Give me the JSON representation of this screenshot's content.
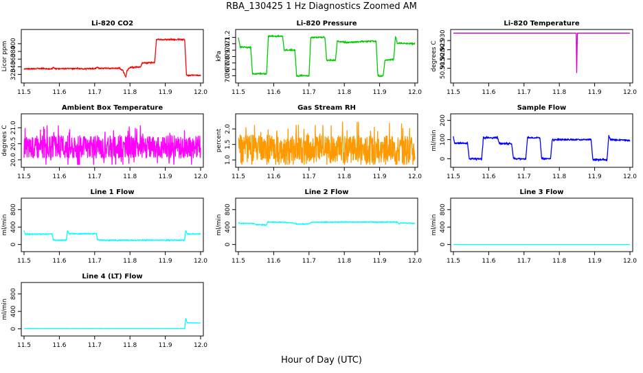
{
  "figure": {
    "title": "RBA_130425  1 Hz Diagnostics Zoomed AM",
    "xlabel": "Hour of Day (UTC)"
  },
  "chart_data": [
    {
      "type": "line",
      "title": "Li-820 CO2",
      "ylabel": "Licor ppm",
      "color": "#ff0000",
      "xlim": [
        11.5,
        12.0
      ],
      "ylim": [
        305,
        430
      ],
      "xticks": [
        "11.5",
        "11.6",
        "11.7",
        "11.8",
        "11.9",
        "12.0"
      ],
      "xtick_values": [
        11.5,
        11.6,
        11.7,
        11.8,
        11.9,
        12.0
      ],
      "yticks": [
        "320",
        "340",
        "360",
        "380",
        "400"
      ],
      "ytick_values": [
        320,
        340,
        360,
        380,
        400
      ],
      "points": [
        [
          11.5,
          335
        ],
        [
          11.58,
          335
        ],
        [
          11.583,
          340
        ],
        [
          11.586,
          335
        ],
        [
          11.7,
          335
        ],
        [
          11.71,
          339
        ],
        [
          11.713,
          336
        ],
        [
          11.77,
          336
        ],
        [
          11.78,
          330
        ],
        [
          11.785,
          320
        ],
        [
          11.788,
          312
        ],
        [
          11.792,
          332
        ],
        [
          11.8,
          338
        ],
        [
          11.82,
          339
        ],
        [
          11.83,
          340
        ],
        [
          11.835,
          350
        ],
        [
          11.87,
          351
        ],
        [
          11.875,
          411
        ],
        [
          11.955,
          411
        ],
        [
          11.96,
          318
        ],
        [
          12.0,
          318
        ]
      ],
      "noise": 1.5
    },
    {
      "type": "line",
      "title": "Li-820 Pressure",
      "ylabel": "kPa",
      "color": "#00cc00",
      "xlim": [
        11.5,
        12.0
      ],
      "ylim": [
        70.53,
        71.28
      ],
      "xticks": [
        "11.5",
        "11.6",
        "11.7",
        "11.8",
        "11.9",
        "12.0"
      ],
      "xtick_values": [
        11.5,
        11.6,
        11.7,
        11.8,
        11.9,
        12.0
      ],
      "yticks": [
        "70.6",
        "70.7",
        "70.8",
        "70.9",
        "71.0",
        "71.1",
        "71.2"
      ],
      "ytick_values": [
        70.6,
        70.7,
        70.8,
        70.9,
        71.0,
        71.1,
        71.2
      ],
      "points": [
        [
          11.5,
          71.2
        ],
        [
          11.505,
          71.05
        ],
        [
          11.535,
          71.04
        ],
        [
          11.54,
          70.63
        ],
        [
          11.58,
          70.63
        ],
        [
          11.585,
          71.22
        ],
        [
          11.625,
          71.22
        ],
        [
          11.63,
          71.0
        ],
        [
          11.66,
          71.0
        ],
        [
          11.665,
          70.6
        ],
        [
          11.7,
          70.6
        ],
        [
          11.705,
          71.2
        ],
        [
          11.745,
          71.2
        ],
        [
          11.75,
          70.84
        ],
        [
          11.775,
          70.84
        ],
        [
          11.78,
          71.14
        ],
        [
          11.81,
          71.12
        ],
        [
          11.84,
          71.13
        ],
        [
          11.87,
          71.14
        ],
        [
          11.89,
          71.14
        ],
        [
          11.895,
          70.6
        ],
        [
          11.91,
          70.6
        ],
        [
          11.915,
          70.84
        ],
        [
          11.94,
          70.86
        ],
        [
          11.945,
          71.22
        ],
        [
          11.95,
          71.11
        ],
        [
          12.0,
          71.1
        ]
      ],
      "noise": 0.01
    },
    {
      "type": "line",
      "title": "Li-820 Temperature",
      "ylabel": "degrees C",
      "color": "#cc00cc",
      "xlim": [
        11.5,
        12.0
      ],
      "ylim": [
        50.9085,
        50.9345
      ],
      "xticks": [
        "11.5",
        "11.6",
        "11.7",
        "11.8",
        "11.9",
        "12.0"
      ],
      "xtick_values": [
        11.5,
        11.6,
        11.7,
        11.8,
        11.9,
        12.0
      ],
      "yticks": [
        "50.915",
        "50.920",
        "50.925",
        "50.930"
      ],
      "ytick_values": [
        50.915,
        50.92,
        50.925,
        50.93
      ],
      "points": [
        [
          11.5,
          50.934
        ],
        [
          11.848,
          50.934
        ],
        [
          11.849,
          50.909
        ],
        [
          11.851,
          50.934
        ],
        [
          12.0,
          50.934
        ]
      ],
      "noise": 0
    },
    {
      "type": "line",
      "title": "Ambient Box Temperature",
      "ylabel": "degrees C",
      "color": "#ff00ff",
      "xlim": [
        11.5,
        12.0
      ],
      "ylim": [
        19.85,
        21.35
      ],
      "xticks": [
        "11.5",
        "11.6",
        "11.7",
        "11.8",
        "11.9",
        "12.0"
      ],
      "xtick_values": [
        11.5,
        11.6,
        11.7,
        11.8,
        11.9,
        12.0
      ],
      "yticks": [
        "20.0",
        "20.5",
        "21.0"
      ],
      "ytick_values": [
        20.0,
        20.5,
        21.0
      ],
      "points": [
        [
          11.5,
          20.4
        ],
        [
          12.0,
          20.4
        ]
      ],
      "noise": 0.35
    },
    {
      "type": "line",
      "title": "Gas Stream RH",
      "ylabel": "percent",
      "color": "#ff9900",
      "xlim": [
        11.5,
        12.0
      ],
      "ylim": [
        0.85,
        2.4
      ],
      "xticks": [
        "11.5",
        "11.6",
        "11.7",
        "11.8",
        "11.9",
        "12.0"
      ],
      "xtick_values": [
        11.5,
        11.6,
        11.7,
        11.8,
        11.9,
        12.0
      ],
      "yticks": [
        "1.0",
        "1.5",
        "2.0"
      ],
      "ytick_values": [
        1.0,
        1.5,
        2.0
      ],
      "points": [
        [
          11.5,
          1.35
        ],
        [
          12.0,
          1.35
        ]
      ],
      "noise": 0.45
    },
    {
      "type": "line",
      "title": "Sample Flow",
      "ylabel": "ml/min",
      "color": "#0000ff",
      "xlim": [
        11.5,
        12.0
      ],
      "ylim": [
        -30,
        220
      ],
      "xticks": [
        "11.5",
        "11.6",
        "11.7",
        "11.8",
        "11.9",
        "12.0"
      ],
      "xtick_values": [
        11.5,
        11.6,
        11.7,
        11.8,
        11.9,
        12.0
      ],
      "yticks": [
        "0",
        "100",
        "200"
      ],
      "ytick_values": [
        0,
        100,
        200
      ],
      "points": [
        [
          11.5,
          115
        ],
        [
          11.503,
          82
        ],
        [
          11.54,
          80
        ],
        [
          11.545,
          0
        ],
        [
          11.58,
          0
        ],
        [
          11.585,
          110
        ],
        [
          11.625,
          110
        ],
        [
          11.63,
          80
        ],
        [
          11.665,
          78
        ],
        [
          11.67,
          0
        ],
        [
          11.705,
          0
        ],
        [
          11.71,
          110
        ],
        [
          11.745,
          110
        ],
        [
          11.75,
          0
        ],
        [
          11.775,
          0
        ],
        [
          11.78,
          100
        ],
        [
          11.89,
          100
        ],
        [
          11.895,
          -5
        ],
        [
          11.935,
          -5
        ],
        [
          11.94,
          118
        ],
        [
          11.945,
          100
        ],
        [
          12.0,
          95
        ]
      ],
      "noise": 4
    },
    {
      "type": "line",
      "title": "Line 1 Flow",
      "ylabel": "ml/min",
      "color": "#00ffff",
      "xlim": [
        11.5,
        12.0
      ],
      "ylim": [
        -100,
        1000
      ],
      "xticks": [
        "11.5",
        "11.6",
        "11.7",
        "11.8",
        "11.9",
        "12.0"
      ],
      "xtick_values": [
        11.5,
        11.6,
        11.7,
        11.8,
        11.9,
        12.0
      ],
      "yticks": [
        "0",
        "400",
        "800"
      ],
      "ytick_values": [
        0,
        400,
        800
      ],
      "points": [
        [
          11.5,
          320
        ],
        [
          11.503,
          240
        ],
        [
          11.58,
          240
        ],
        [
          11.583,
          100
        ],
        [
          11.62,
          100
        ],
        [
          11.623,
          320
        ],
        [
          11.627,
          250
        ],
        [
          11.705,
          250
        ],
        [
          11.708,
          110
        ],
        [
          11.73,
          100
        ],
        [
          11.955,
          100
        ],
        [
          11.958,
          330
        ],
        [
          11.962,
          240
        ],
        [
          12.0,
          240
        ]
      ],
      "noise": 10
    },
    {
      "type": "line",
      "title": "Line 2 Flow",
      "ylabel": "ml/min",
      "color": "#00ffff",
      "xlim": [
        11.5,
        12.0
      ],
      "ylim": [
        -100,
        1000
      ],
      "xticks": [
        "11.5",
        "11.6",
        "11.7",
        "11.8",
        "11.9",
        "12.0"
      ],
      "xtick_values": [
        11.5,
        11.6,
        11.7,
        11.8,
        11.9,
        12.0
      ],
      "yticks": [
        "0",
        "400",
        "800"
      ],
      "ytick_values": [
        0,
        400,
        800
      ],
      "points": [
        [
          11.5,
          490
        ],
        [
          11.545,
          480
        ],
        [
          11.55,
          455
        ],
        [
          11.58,
          450
        ],
        [
          11.583,
          515
        ],
        [
          11.63,
          510
        ],
        [
          11.66,
          490
        ],
        [
          11.665,
          470
        ],
        [
          11.7,
          470
        ],
        [
          11.705,
          510
        ],
        [
          11.8,
          515
        ],
        [
          11.95,
          515
        ],
        [
          11.955,
          470
        ],
        [
          11.96,
          495
        ],
        [
          12.0,
          485
        ]
      ],
      "noise": 8
    },
    {
      "type": "line",
      "title": "Line 3 Flow",
      "ylabel": "ml/min",
      "color": "#00ffff",
      "xlim": [
        11.5,
        12.0
      ],
      "ylim": [
        -100,
        1000
      ],
      "xticks": [
        "11.5",
        "11.6",
        "11.7",
        "11.8",
        "11.9",
        "12.0"
      ],
      "xtick_values": [
        11.5,
        11.6,
        11.7,
        11.8,
        11.9,
        12.0
      ],
      "yticks": [
        "0",
        "400",
        "800"
      ],
      "ytick_values": [
        0,
        400,
        800
      ],
      "points": [
        [
          11.5,
          0
        ],
        [
          12.0,
          0
        ]
      ],
      "noise": 0
    },
    {
      "type": "line",
      "title": "Line 4 (LT) Flow",
      "ylabel": "ml/min",
      "color": "#00ffff",
      "xlim": [
        11.5,
        12.0
      ],
      "ylim": [
        -100,
        1000
      ],
      "xticks": [
        "11.5",
        "11.6",
        "11.7",
        "11.8",
        "11.9",
        "12.0"
      ],
      "xtick_values": [
        11.5,
        11.6,
        11.7,
        11.8,
        11.9,
        12.0
      ],
      "yticks": [
        "0",
        "400",
        "800"
      ],
      "ytick_values": [
        0,
        400,
        800
      ],
      "points": [
        [
          11.5,
          5
        ],
        [
          11.955,
          5
        ],
        [
          11.958,
          250
        ],
        [
          11.962,
          140
        ],
        [
          12.0,
          135
        ]
      ],
      "noise": 3
    }
  ]
}
